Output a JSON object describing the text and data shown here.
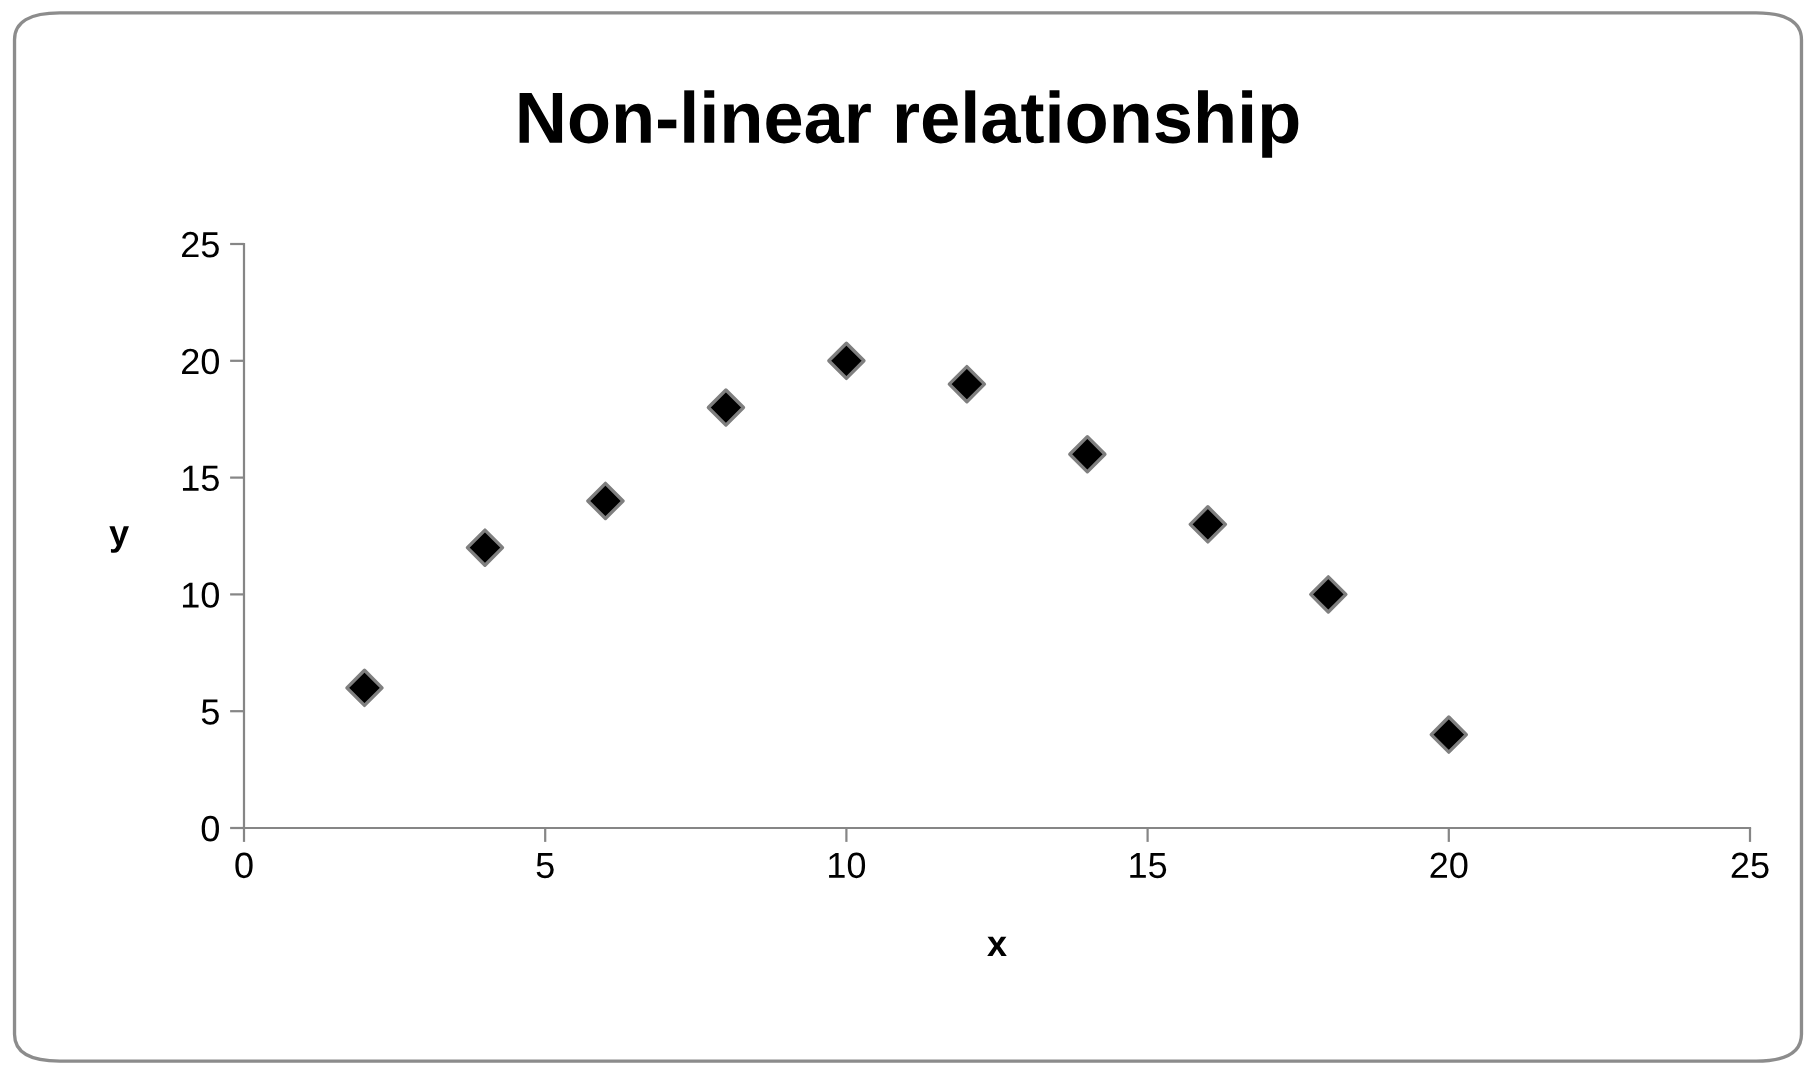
{
  "chart_data": {
    "type": "scatter",
    "title": "Non-linear relationship",
    "xlabel": "x",
    "ylabel": "y",
    "x": [
      2,
      4,
      6,
      8,
      10,
      12,
      14,
      16,
      18,
      20
    ],
    "values": [
      6,
      12,
      14,
      18,
      20,
      19,
      16,
      13,
      10,
      4
    ],
    "color": "#000000",
    "marker": "diamond",
    "xlim": [
      0,
      25
    ],
    "xticks": [
      0,
      5,
      10,
      15,
      20,
      25
    ],
    "ylim": [
      0,
      25
    ],
    "yticks": [
      0,
      5,
      10,
      15,
      20,
      25
    ],
    "grid": false,
    "legend": false
  }
}
